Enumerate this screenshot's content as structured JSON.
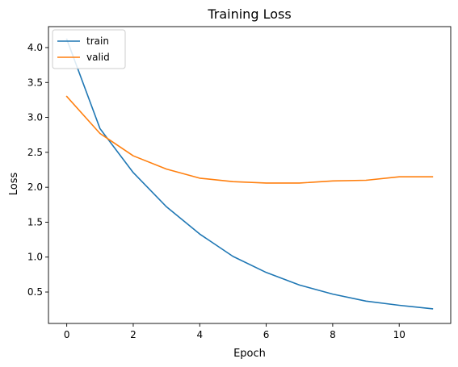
{
  "chart_data": {
    "type": "line",
    "title": "Training Loss",
    "xlabel": "Epoch",
    "ylabel": "Loss",
    "x": [
      0,
      1,
      2,
      3,
      4,
      5,
      6,
      7,
      8,
      9,
      10,
      11
    ],
    "xlim": [
      -0.55,
      11.55
    ],
    "ylim": [
      0.05,
      4.3
    ],
    "xticks": [
      0,
      2,
      4,
      6,
      8,
      10
    ],
    "xtick_labels": [
      "0",
      "2",
      "4",
      "6",
      "8",
      "10"
    ],
    "yticks": [
      0.5,
      1.0,
      1.5,
      2.0,
      2.5,
      3.0,
      3.5,
      4.0
    ],
    "ytick_labels": [
      "0.5",
      "1.0",
      "1.5",
      "2.0",
      "2.5",
      "3.0",
      "3.5",
      "4.0"
    ],
    "grid": false,
    "legend_position": "upper-left",
    "series": [
      {
        "name": "train",
        "color": "#1f77b4",
        "values": [
          4.12,
          2.84,
          2.21,
          1.72,
          1.33,
          1.01,
          0.78,
          0.6,
          0.47,
          0.37,
          0.31,
          0.26
        ]
      },
      {
        "name": "valid",
        "color": "#ff7f0e",
        "values": [
          3.3,
          2.77,
          2.45,
          2.26,
          2.13,
          2.08,
          2.06,
          2.06,
          2.09,
          2.1,
          2.15,
          2.15
        ]
      }
    ]
  }
}
